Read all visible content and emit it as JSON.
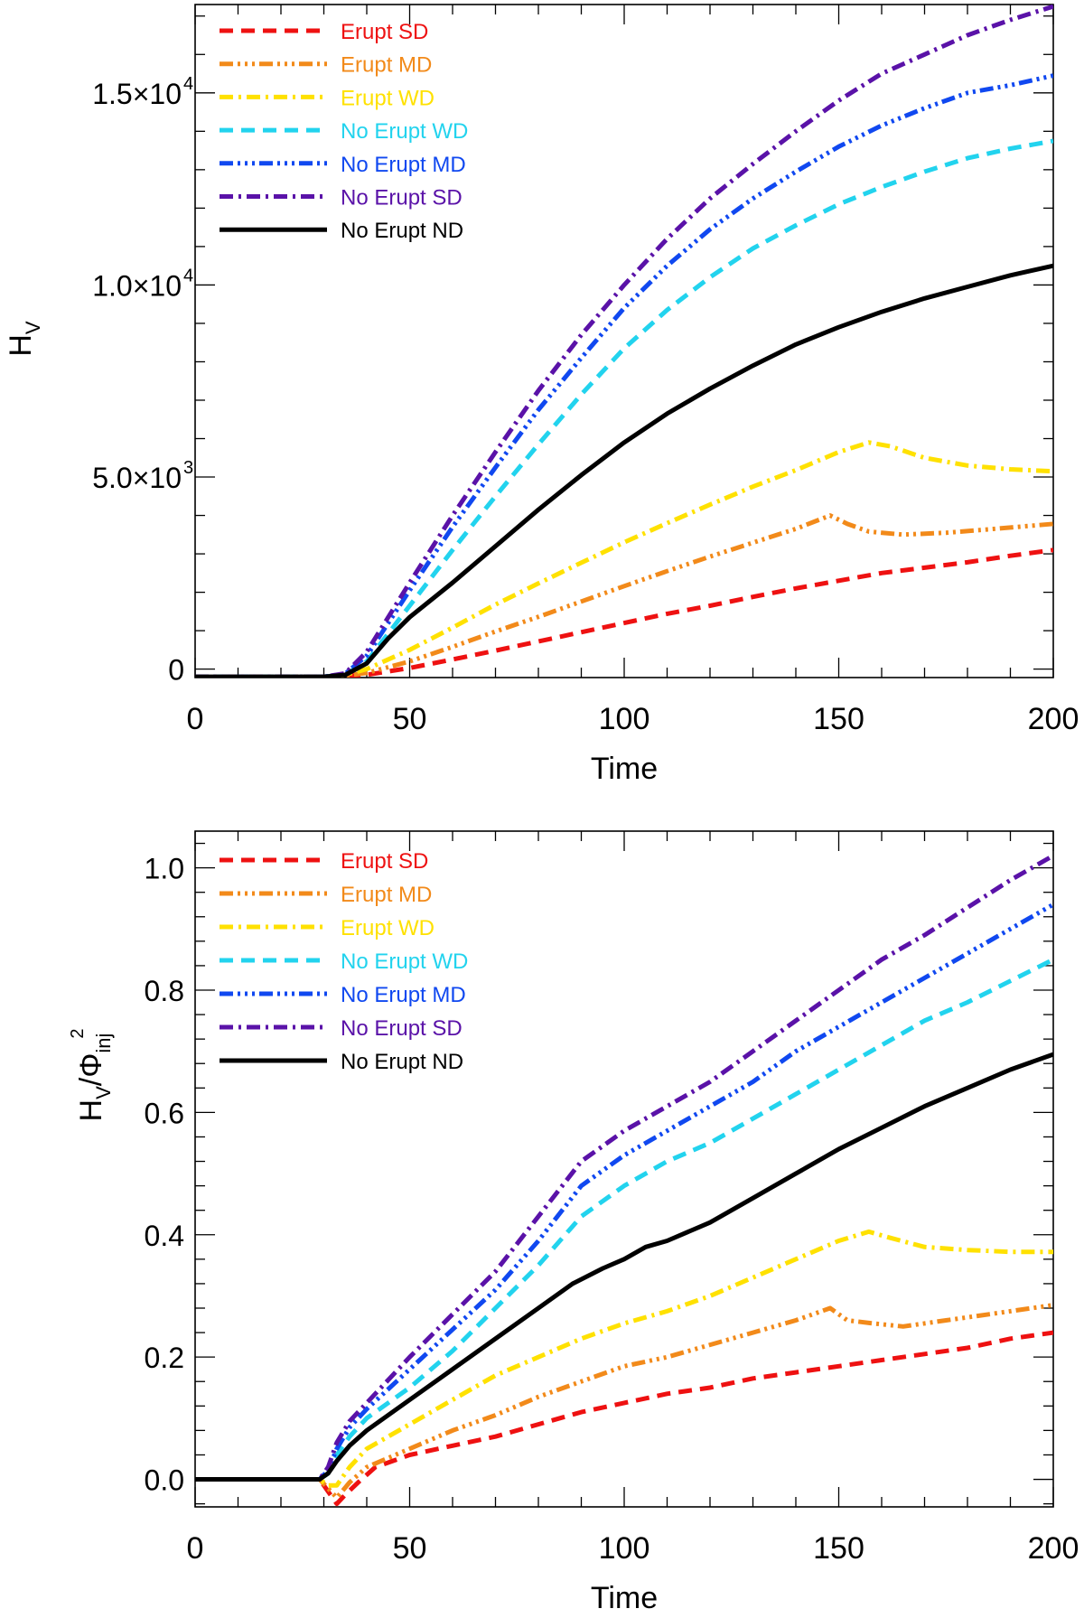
{
  "chart_data": [
    {
      "type": "line",
      "panel": "top",
      "title": "",
      "xlabel": "Time",
      "ylabel": "H",
      "ylabel_sub": "V",
      "xlim": [
        0,
        200
      ],
      "ylim": [
        -220,
        17300
      ],
      "xticks": [
        0,
        50,
        100,
        150,
        200
      ],
      "xtick_labels": [
        "0",
        "50",
        "100",
        "150",
        "200"
      ],
      "yticks": [
        0,
        5000,
        10000,
        15000
      ],
      "ytick_labels": [
        {
          "mant": "0",
          "exp": ""
        },
        {
          "mant": "5.0×10",
          "exp": "3"
        },
        {
          "mant": "1.0×10",
          "exp": "4"
        },
        {
          "mant": "1.5×10",
          "exp": "4"
        }
      ],
      "legend_position": "top-left",
      "series": [
        {
          "name": "Erupt SD",
          "color": "#ee1111",
          "dash": "dash",
          "x": [
            0,
            30,
            40,
            50,
            60,
            70,
            80,
            90,
            100,
            110,
            120,
            130,
            140,
            150,
            160,
            170,
            180,
            190,
            200
          ],
          "y": [
            -200,
            -200,
            -150,
            30,
            250,
            480,
            720,
            960,
            1200,
            1440,
            1650,
            1880,
            2100,
            2300,
            2500,
            2640,
            2780,
            2950,
            3100
          ]
        },
        {
          "name": "Erupt MD",
          "color": "#f28a1a",
          "dash": "dash3dot",
          "x": [
            0,
            30,
            35,
            40,
            50,
            60,
            70,
            80,
            90,
            100,
            110,
            120,
            130,
            140,
            148,
            152,
            157,
            165,
            175,
            185,
            200
          ],
          "y": [
            -200,
            -200,
            -170,
            -100,
            200,
            580,
            980,
            1360,
            1760,
            2160,
            2550,
            2930,
            3290,
            3650,
            4000,
            3780,
            3580,
            3500,
            3550,
            3640,
            3780
          ]
        },
        {
          "name": "Erupt WD",
          "color": "#ffe100",
          "dash": "dashdot",
          "x": [
            0,
            30,
            35,
            40,
            50,
            60,
            70,
            80,
            90,
            100,
            110,
            120,
            130,
            140,
            150,
            157,
            162,
            170,
            180,
            190,
            200
          ],
          "y": [
            -200,
            -200,
            -150,
            0,
            500,
            1080,
            1680,
            2230,
            2770,
            3300,
            3800,
            4280,
            4750,
            5180,
            5650,
            5900,
            5800,
            5500,
            5300,
            5200,
            5150
          ]
        },
        {
          "name": "No Erupt WD",
          "color": "#22d3ee",
          "dash": "dash",
          "x": [
            0,
            30,
            35,
            40,
            50,
            60,
            70,
            80,
            90,
            100,
            110,
            120,
            130,
            140,
            150,
            160,
            170,
            180,
            190,
            200
          ],
          "y": [
            -200,
            -200,
            -140,
            200,
            1650,
            3100,
            4500,
            5850,
            7150,
            8350,
            9350,
            10200,
            10950,
            11550,
            12100,
            12550,
            12950,
            13300,
            13550,
            13750
          ]
        },
        {
          "name": "No Erupt MD",
          "color": "#1048f0",
          "dash": "dash3dot",
          "x": [
            0,
            30,
            35,
            40,
            50,
            60,
            70,
            80,
            90,
            100,
            110,
            120,
            130,
            140,
            150,
            160,
            170,
            180,
            190,
            200
          ],
          "y": [
            -200,
            -200,
            -120,
            350,
            2050,
            3700,
            5250,
            6750,
            8100,
            9400,
            10500,
            11450,
            12250,
            12950,
            13600,
            14150,
            14600,
            15000,
            15200,
            15450
          ]
        },
        {
          "name": "No Erupt SD",
          "color": "#5a12a8",
          "dash": "dashdot",
          "x": [
            0,
            30,
            35,
            40,
            50,
            60,
            70,
            80,
            90,
            100,
            110,
            120,
            130,
            140,
            150,
            160,
            170,
            180,
            190,
            200
          ],
          "y": [
            -200,
            -200,
            -110,
            450,
            2250,
            4000,
            5650,
            7250,
            8700,
            10000,
            11200,
            12250,
            13150,
            14000,
            14800,
            15500,
            16000,
            16500,
            16900,
            17250
          ]
        },
        {
          "name": "No Erupt ND",
          "color": "#000000",
          "dash": "solid",
          "x": [
            0,
            30,
            35,
            40,
            45,
            50,
            60,
            70,
            80,
            90,
            100,
            110,
            120,
            130,
            140,
            150,
            160,
            170,
            180,
            190,
            200
          ],
          "y": [
            -200,
            -200,
            -150,
            150,
            800,
            1350,
            2250,
            3200,
            4150,
            5050,
            5900,
            6650,
            7300,
            7900,
            8450,
            8900,
            9300,
            9650,
            9950,
            10250,
            10500
          ]
        }
      ]
    },
    {
      "type": "line",
      "panel": "bottom",
      "title": "",
      "xlabel": "Time",
      "ylabel": "H",
      "ylabel_sub": "V",
      "ylabel_den": "/Φ",
      "ylabel_den_sub": "inj",
      "ylabel_den_sup": "2",
      "xlim": [
        0,
        200
      ],
      "ylim": [
        -0.045,
        1.06
      ],
      "xticks": [
        0,
        50,
        100,
        150,
        200
      ],
      "xtick_labels": [
        "0",
        "50",
        "100",
        "150",
        "200"
      ],
      "yticks": [
        0.0,
        0.2,
        0.4,
        0.6,
        0.8,
        1.0
      ],
      "ytick_labels": [
        "0.0",
        "0.2",
        "0.4",
        "0.6",
        "0.8",
        "1.0"
      ],
      "legend_position": "top-left",
      "series": [
        {
          "name": "Erupt SD",
          "color": "#ee1111",
          "dash": "dash",
          "x": [
            0,
            29,
            31,
            33,
            35,
            38,
            42,
            50,
            60,
            70,
            80,
            90,
            100,
            110,
            120,
            130,
            140,
            150,
            160,
            170,
            180,
            190,
            200
          ],
          "y": [
            0,
            0,
            -0.02,
            -0.04,
            -0.025,
            -0.005,
            0.02,
            0.04,
            0.055,
            0.07,
            0.09,
            0.11,
            0.125,
            0.14,
            0.15,
            0.165,
            0.175,
            0.185,
            0.195,
            0.205,
            0.215,
            0.23,
            0.24
          ]
        },
        {
          "name": "Erupt MD",
          "color": "#f28a1a",
          "dash": "dash3dot",
          "x": [
            0,
            29,
            31,
            33,
            36,
            40,
            50,
            60,
            70,
            80,
            90,
            100,
            110,
            120,
            130,
            140,
            148,
            152,
            158,
            165,
            175,
            185,
            200
          ],
          "y": [
            0,
            0,
            -0.015,
            -0.03,
            -0.005,
            0.02,
            0.05,
            0.08,
            0.105,
            0.135,
            0.16,
            0.185,
            0.2,
            0.22,
            0.24,
            0.26,
            0.28,
            0.26,
            0.255,
            0.25,
            0.26,
            0.27,
            0.285
          ]
        },
        {
          "name": "Erupt WD",
          "color": "#ffe100",
          "dash": "dashdot",
          "x": [
            0,
            29,
            31,
            33,
            36,
            40,
            50,
            60,
            70,
            80,
            90,
            100,
            110,
            120,
            130,
            140,
            150,
            157,
            162,
            170,
            180,
            190,
            200
          ],
          "y": [
            0,
            0,
            -0.01,
            -0.01,
            0.02,
            0.05,
            0.09,
            0.13,
            0.17,
            0.2,
            0.23,
            0.255,
            0.275,
            0.3,
            0.33,
            0.36,
            0.39,
            0.405,
            0.395,
            0.38,
            0.375,
            0.372,
            0.372
          ]
        },
        {
          "name": "No Erupt WD",
          "color": "#22d3ee",
          "dash": "dash",
          "x": [
            0,
            29,
            31,
            33,
            36,
            40,
            50,
            60,
            70,
            80,
            90,
            100,
            110,
            120,
            130,
            140,
            150,
            160,
            170,
            180,
            190,
            200
          ],
          "y": [
            0,
            0,
            0.01,
            0.04,
            0.07,
            0.1,
            0.15,
            0.21,
            0.28,
            0.35,
            0.43,
            0.48,
            0.52,
            0.55,
            0.59,
            0.63,
            0.67,
            0.71,
            0.75,
            0.78,
            0.815,
            0.85
          ]
        },
        {
          "name": "No Erupt MD",
          "color": "#1048f0",
          "dash": "dash3dot",
          "x": [
            0,
            29,
            31,
            33,
            36,
            40,
            50,
            60,
            70,
            80,
            90,
            100,
            110,
            120,
            130,
            140,
            150,
            160,
            170,
            180,
            190,
            200
          ],
          "y": [
            0,
            0,
            0.015,
            0.05,
            0.085,
            0.115,
            0.18,
            0.245,
            0.31,
            0.39,
            0.48,
            0.53,
            0.57,
            0.61,
            0.65,
            0.7,
            0.74,
            0.78,
            0.82,
            0.86,
            0.9,
            0.94
          ]
        },
        {
          "name": "No Erupt SD",
          "color": "#5a12a8",
          "dash": "dashdot",
          "x": [
            0,
            29,
            31,
            33,
            36,
            40,
            50,
            60,
            70,
            80,
            90,
            100,
            110,
            120,
            130,
            140,
            150,
            160,
            170,
            180,
            190,
            200
          ],
          "y": [
            0,
            0,
            0.02,
            0.06,
            0.095,
            0.125,
            0.2,
            0.27,
            0.34,
            0.43,
            0.52,
            0.57,
            0.61,
            0.65,
            0.7,
            0.75,
            0.8,
            0.85,
            0.89,
            0.935,
            0.98,
            1.02
          ]
        },
        {
          "name": "No Erupt ND",
          "color": "#000000",
          "dash": "solid",
          "x": [
            0,
            29,
            31,
            33,
            36,
            40,
            50,
            60,
            70,
            80,
            88,
            95,
            100,
            105,
            110,
            120,
            130,
            140,
            150,
            160,
            170,
            180,
            190,
            200
          ],
          "y": [
            0,
            0,
            0.01,
            0.03,
            0.055,
            0.08,
            0.13,
            0.18,
            0.23,
            0.28,
            0.32,
            0.345,
            0.36,
            0.38,
            0.39,
            0.42,
            0.46,
            0.5,
            0.54,
            0.575,
            0.61,
            0.64,
            0.67,
            0.695
          ]
        }
      ]
    }
  ]
}
